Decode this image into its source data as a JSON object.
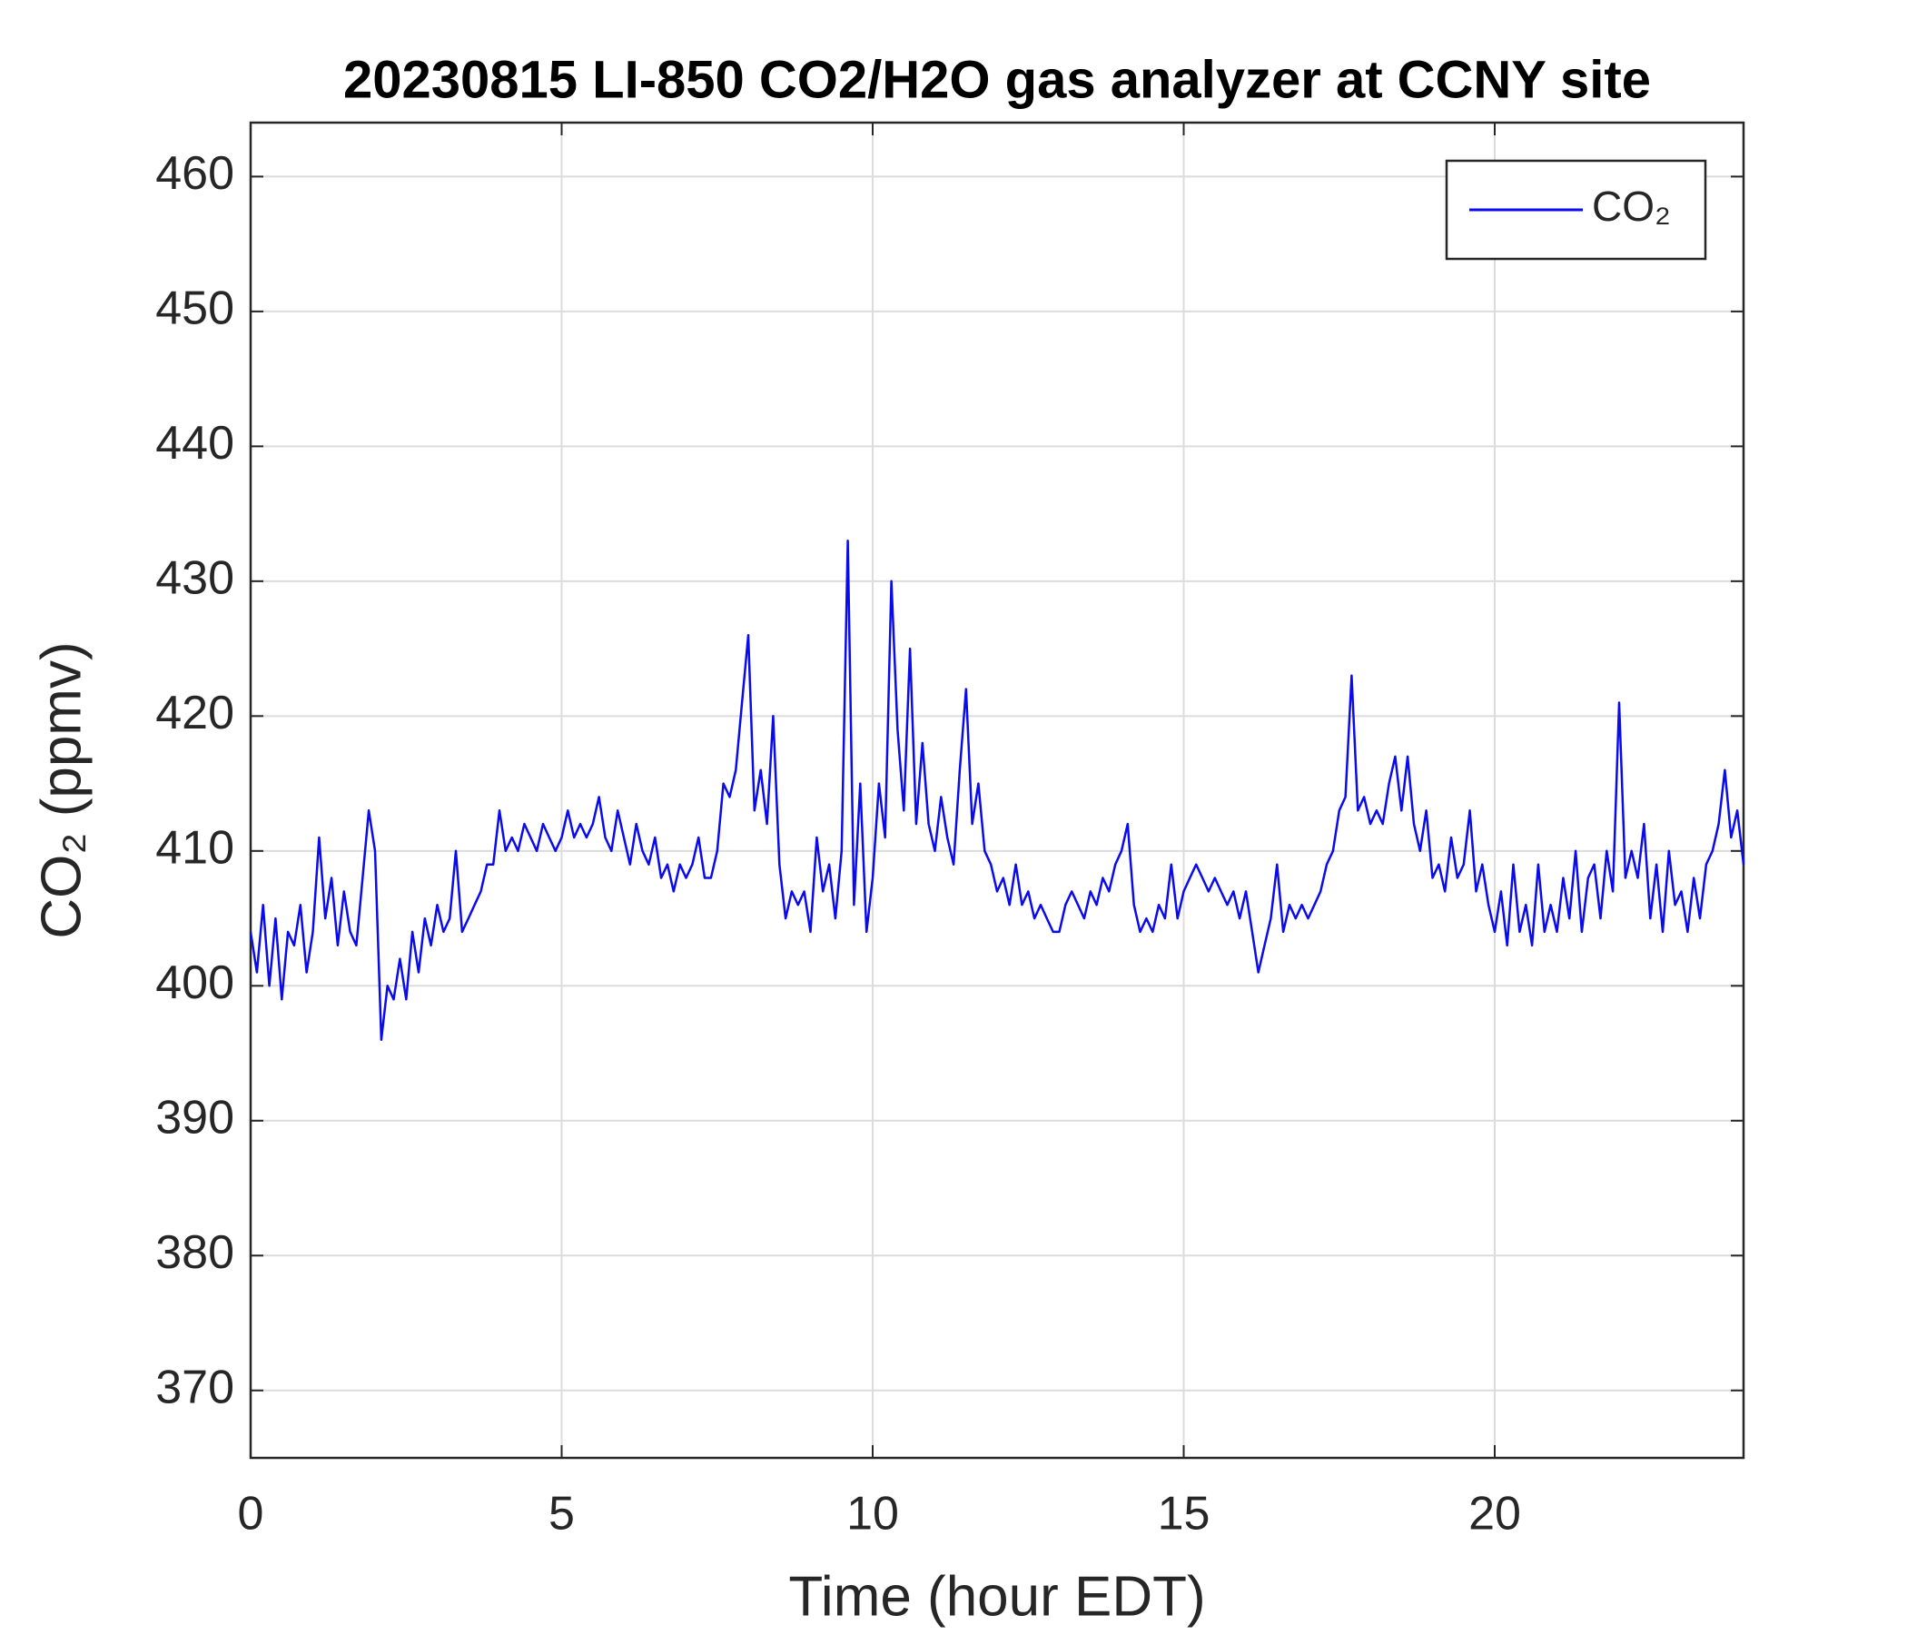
{
  "chart_data": {
    "type": "line",
    "title": "20230815 LI-850 CO2/H2O gas analyzer at CCNY site",
    "xlabel": "Time (hour EDT)",
    "ylabel": "CO₂ (ppmv)",
    "x": [
      0,
      0.1,
      0.2,
      0.3,
      0.4,
      0.5,
      0.6,
      0.7,
      0.8,
      0.9,
      1,
      1.1,
      1.2,
      1.3,
      1.4,
      1.5,
      1.6,
      1.7,
      1.8,
      1.9,
      2,
      2.1,
      2.2,
      2.3,
      2.4,
      2.5,
      2.6,
      2.7,
      2.8,
      2.9,
      3,
      3.1,
      3.2,
      3.3,
      3.4,
      3.5,
      3.6,
      3.7,
      3.8,
      3.9,
      4,
      4.1,
      4.2,
      4.3,
      4.4,
      4.5,
      4.6,
      4.7,
      4.8,
      4.9,
      5,
      5.1,
      5.2,
      5.3,
      5.4,
      5.5,
      5.6,
      5.7,
      5.8,
      5.9,
      6,
      6.1,
      6.2,
      6.3,
      6.4,
      6.5,
      6.6,
      6.7,
      6.8,
      6.9,
      7,
      7.1,
      7.2,
      7.3,
      7.4,
      7.5,
      7.6,
      7.7,
      7.8,
      7.9,
      8,
      8.1,
      8.2,
      8.3,
      8.4,
      8.5,
      8.6,
      8.7,
      8.8,
      8.9,
      9,
      9.1,
      9.2,
      9.3,
      9.4,
      9.5,
      9.6,
      9.7,
      9.8,
      9.9,
      10,
      10.1,
      10.2,
      10.3,
      10.4,
      10.5,
      10.6,
      10.7,
      10.8,
      10.9,
      11,
      11.1,
      11.2,
      11.3,
      11.4,
      11.5,
      11.6,
      11.7,
      11.8,
      11.9,
      12,
      12.1,
      12.2,
      12.3,
      12.4,
      12.5,
      12.6,
      12.7,
      12.8,
      12.9,
      13,
      13.1,
      13.2,
      13.3,
      13.4,
      13.5,
      13.6,
      13.7,
      13.8,
      13.9,
      14,
      14.1,
      14.2,
      14.3,
      14.4,
      14.5,
      14.6,
      14.7,
      14.8,
      14.9,
      15,
      15.1,
      15.2,
      15.3,
      15.4,
      15.5,
      15.6,
      15.7,
      15.8,
      15.9,
      16,
      16.1,
      16.2,
      16.3,
      16.4,
      16.5,
      16.6,
      16.7,
      16.8,
      16.9,
      17,
      17.1,
      17.2,
      17.3,
      17.4,
      17.5,
      17.6,
      17.7,
      17.8,
      17.9,
      18,
      18.1,
      18.2,
      18.3,
      18.4,
      18.5,
      18.6,
      18.7,
      18.8,
      18.9,
      19,
      19.1,
      19.2,
      19.3,
      19.4,
      19.5,
      19.6,
      19.7,
      19.8,
      19.9,
      20,
      20.1,
      20.2,
      20.3,
      20.4,
      20.5,
      20.6,
      20.7,
      20.8,
      20.9,
      21,
      21.1,
      21.2,
      21.3,
      21.4,
      21.5,
      21.6,
      21.7,
      21.8,
      21.9,
      22,
      22.1,
      22.2,
      22.3,
      22.4,
      22.5,
      22.6,
      22.7,
      22.8,
      22.9,
      23,
      23.1,
      23.2,
      23.3,
      23.4,
      23.5,
      23.6,
      23.7,
      23.8,
      23.9,
      24
    ],
    "series": [
      {
        "name": "CO₂",
        "color": "#0a0aee",
        "values": [
          404,
          401,
          406,
          400,
          405,
          399,
          404,
          403,
          406,
          401,
          404,
          411,
          405,
          408,
          403,
          407,
          404,
          403,
          408,
          413,
          410,
          396,
          400,
          399,
          402,
          399,
          404,
          401,
          405,
          403,
          406,
          404,
          405,
          410,
          404,
          405,
          406,
          407,
          409,
          409,
          413,
          410,
          411,
          410,
          412,
          411,
          410,
          412,
          411,
          410,
          411,
          413,
          411,
          412,
          411,
          412,
          414,
          411,
          410,
          413,
          411,
          409,
          412,
          410,
          409,
          411,
          408,
          409,
          407,
          409,
          408,
          409,
          411,
          408,
          408,
          410,
          415,
          414,
          416,
          421,
          426,
          413,
          416,
          412,
          420,
          409,
          405,
          407,
          406,
          407,
          404,
          411,
          407,
          409,
          405,
          410,
          433,
          406,
          415,
          404,
          408,
          415,
          411,
          430,
          419,
          413,
          425,
          412,
          418,
          412,
          410,
          414,
          411,
          409,
          416,
          422,
          412,
          415,
          410,
          409,
          407,
          408,
          406,
          409,
          406,
          407,
          405,
          406,
          405,
          404,
          404,
          406,
          407,
          406,
          405,
          407,
          406,
          408,
          407,
          409,
          410,
          412,
          406,
          404,
          405,
          404,
          406,
          405,
          409,
          405,
          407,
          408,
          409,
          408,
          407,
          408,
          407,
          406,
          407,
          405,
          407,
          404,
          401,
          403,
          405,
          409,
          404,
          406,
          405,
          406,
          405,
          406,
          407,
          409,
          410,
          413,
          414,
          423,
          413,
          414,
          412,
          413,
          412,
          415,
          417,
          413,
          417,
          412,
          410,
          413,
          408,
          409,
          407,
          411,
          408,
          409,
          413,
          407,
          409,
          406,
          404,
          407,
          403,
          409,
          404,
          406,
          403,
          409,
          404,
          406,
          404,
          408,
          405,
          410,
          404,
          408,
          409,
          405,
          410,
          407,
          421,
          408,
          410,
          408,
          412,
          405,
          409,
          404,
          410,
          406,
          407,
          404,
          408,
          405,
          409,
          410,
          412,
          416,
          411,
          413,
          409
        ]
      }
    ],
    "xlim": [
      0,
      24
    ],
    "xticks": [
      0,
      5,
      10,
      15,
      20
    ],
    "ylim": [
      365,
      464
    ],
    "yticks": [
      370,
      380,
      390,
      400,
      410,
      420,
      430,
      440,
      450,
      460
    ],
    "grid": true,
    "legend": "upper right"
  }
}
